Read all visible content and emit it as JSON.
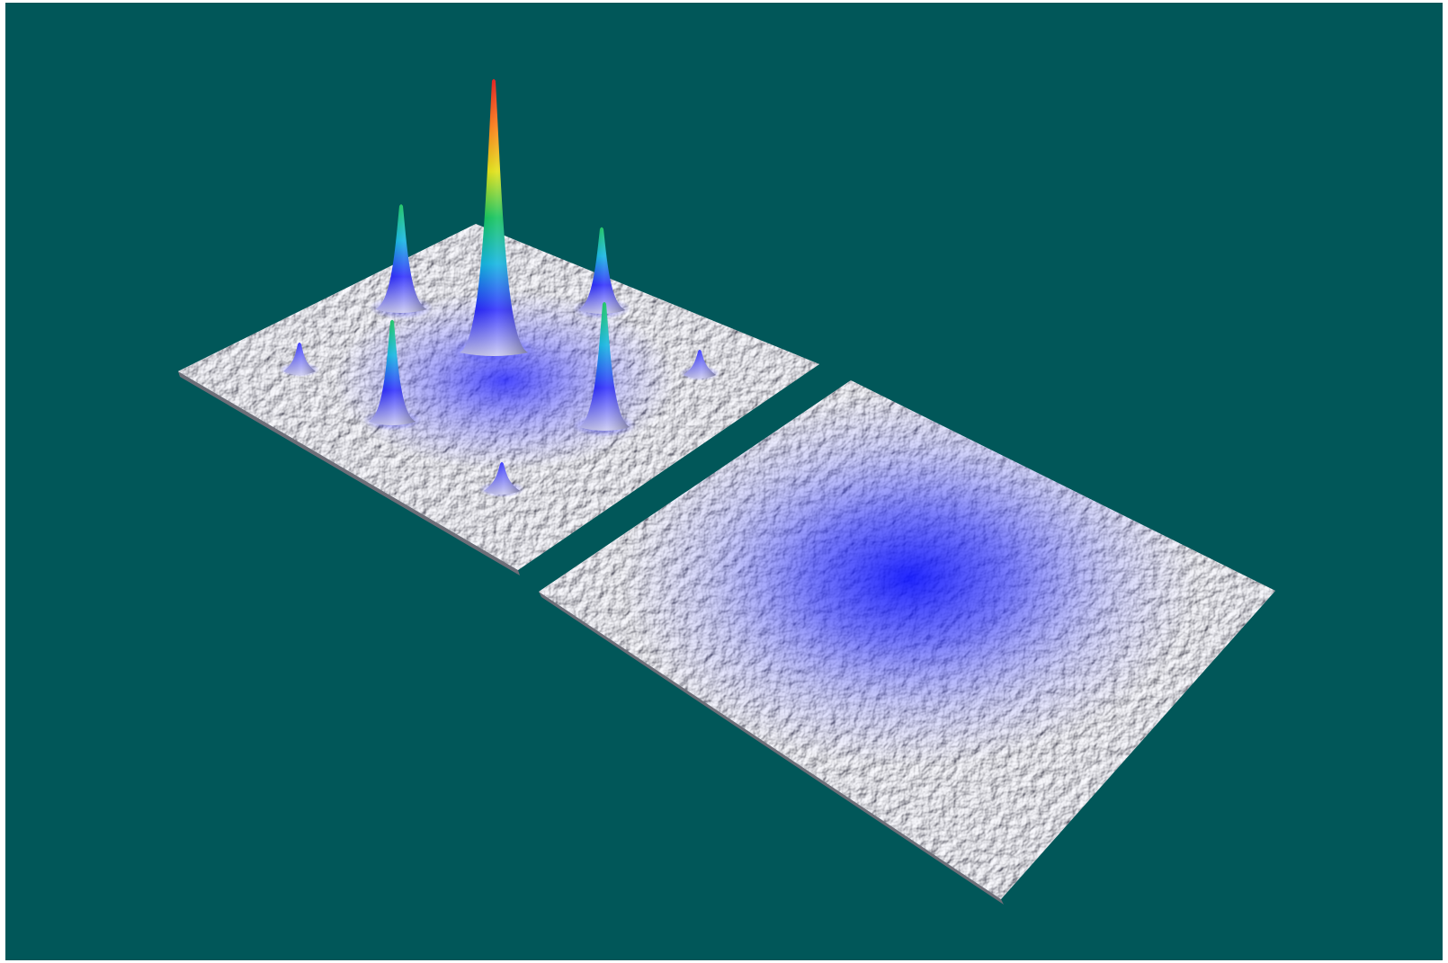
{
  "scene": {
    "background_color": "#015759",
    "surface_color": "#c9c9cf",
    "surface_shadow_color": "#6e6e78",
    "colormap": [
      "#c8c8f0",
      "#2020ff",
      "#00b0e0",
      "#00c050",
      "#e0e000",
      "#ff7000",
      "#e00000"
    ],
    "left_plate": {
      "peaks": [
        {
          "height": 1.0
        },
        {
          "height": 0.47
        },
        {
          "height": 0.42
        },
        {
          "height": 0.42
        },
        {
          "height": 0.45
        },
        {
          "height": 0.07
        },
        {
          "height": 0.06
        },
        {
          "height": 0.07
        }
      ]
    },
    "right_plate": {
      "shading": "broad-blue-diffuse"
    }
  }
}
